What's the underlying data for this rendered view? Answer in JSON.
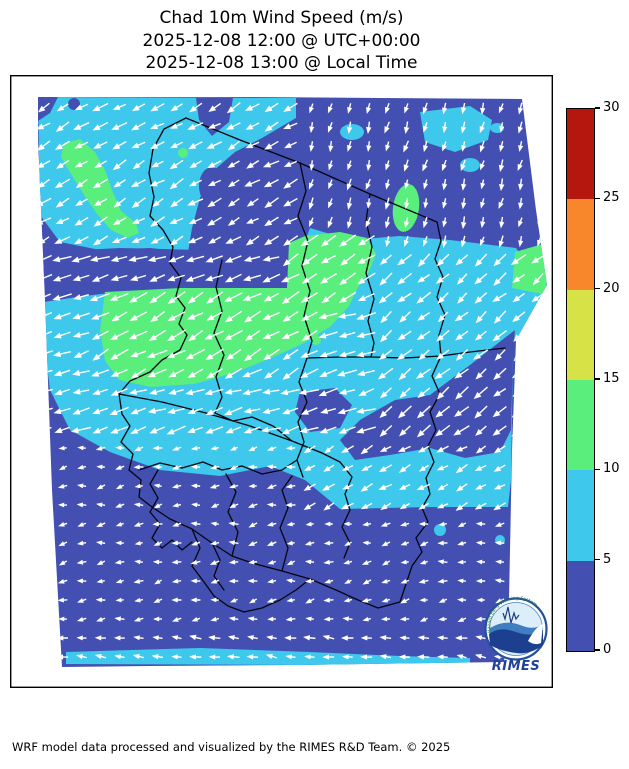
{
  "title": {
    "line1": "Chad 10m Wind Speed (m/s)",
    "line2": "2025-12-08 12:00 @ UTC+00:00",
    "line3": "2025-12-08 13:00 @ Local Time"
  },
  "footer": {
    "credit": "WRF model data processed and visualized by the RIMES R&D Team. © 2025"
  },
  "colorbar": {
    "units": "m/s",
    "min": 0,
    "max": 30,
    "ticks": [
      0,
      5,
      10,
      15,
      20,
      25,
      30
    ],
    "segments": [
      {
        "from": 0,
        "to": 5,
        "color": "#4350B1",
        "label": "0-5 m/s"
      },
      {
        "from": 5,
        "to": 10,
        "color": "#3EC8EB",
        "label": "5-10 m/s"
      },
      {
        "from": 10,
        "to": 15,
        "color": "#5AEE7D",
        "label": "10-15 m/s"
      },
      {
        "from": 15,
        "to": 20,
        "color": "#D7E246",
        "label": "15-20 m/s"
      },
      {
        "from": 20,
        "to": 25,
        "color": "#F8872B",
        "label": "20-25 m/s"
      },
      {
        "from": 25,
        "to": 30,
        "color": "#B3170D",
        "label": "25-30 m/s"
      }
    ]
  },
  "map": {
    "background": "#ffffff",
    "border_color": "#000000",
    "wind_field": {
      "arrow_color": "#ffffff",
      "grid_spacing": 19,
      "regions": [
        {
          "name": "green-core-upper",
          "xMin": 287,
          "xMax": 376,
          "yMin": 236,
          "yMax": 300,
          "angle": 148,
          "length": 13
        },
        {
          "name": "green-core-main",
          "xMin": 100,
          "xMax": 330,
          "yMin": 287,
          "yMax": 386,
          "angle": 152,
          "length": 13
        },
        {
          "name": "northeast-light",
          "xMin": 305,
          "yMax": 245,
          "angle": 105,
          "length": 6
        },
        {
          "name": "north-band",
          "yMax": 252,
          "angle": 150,
          "length": 9.5
        },
        {
          "name": "central-west",
          "xMax": 380,
          "yMax": 430,
          "angle": 163,
          "length": 12
        },
        {
          "name": "central-east",
          "yMax": 430,
          "angle": 140,
          "length": 10.5
        },
        {
          "name": "southeast-band",
          "xMin": 298,
          "yMax": 512,
          "angle": 150,
          "length": 7.5
        },
        {
          "name": "bottom-edge",
          "yMin": 628,
          "angle": 188,
          "length": 6
        },
        {
          "name": "south-light",
          "angle": 170,
          "length": 4.2,
          "jitter": 40
        }
      ]
    }
  },
  "logo": {
    "wordmark": "RIMES",
    "arc_text": "Hazard Early Warning System"
  }
}
